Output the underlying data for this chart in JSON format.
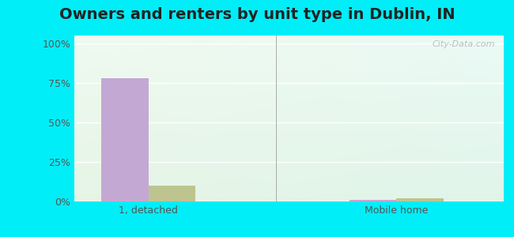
{
  "title": "Owners and renters by unit type in Dublin, IN",
  "categories": [
    "1, detached",
    "Mobile home"
  ],
  "owner_values": [
    78,
    1
  ],
  "renter_values": [
    10,
    2
  ],
  "owner_color": "#c4a8d4",
  "renter_color": "#bdc490",
  "yticks": [
    0,
    25,
    50,
    75,
    100
  ],
  "ytick_labels": [
    "0%",
    "25%",
    "50%",
    "75%",
    "100%"
  ],
  "outer_bg": "#00eef8",
  "watermark": "City-Data.com",
  "bar_width": 0.35,
  "group_positions": [
    0.55,
    2.4
  ],
  "xlim": [
    0.0,
    3.2
  ],
  "ylim": [
    0,
    105
  ],
  "separator_x": 1.5,
  "bg_colors_top": [
    "#e8f8ec",
    "#f8f8f8"
  ],
  "bg_colors_bottom": [
    "#d8f0e0",
    "#e8f8f0"
  ],
  "title_fontsize": 14,
  "tick_fontsize": 9
}
